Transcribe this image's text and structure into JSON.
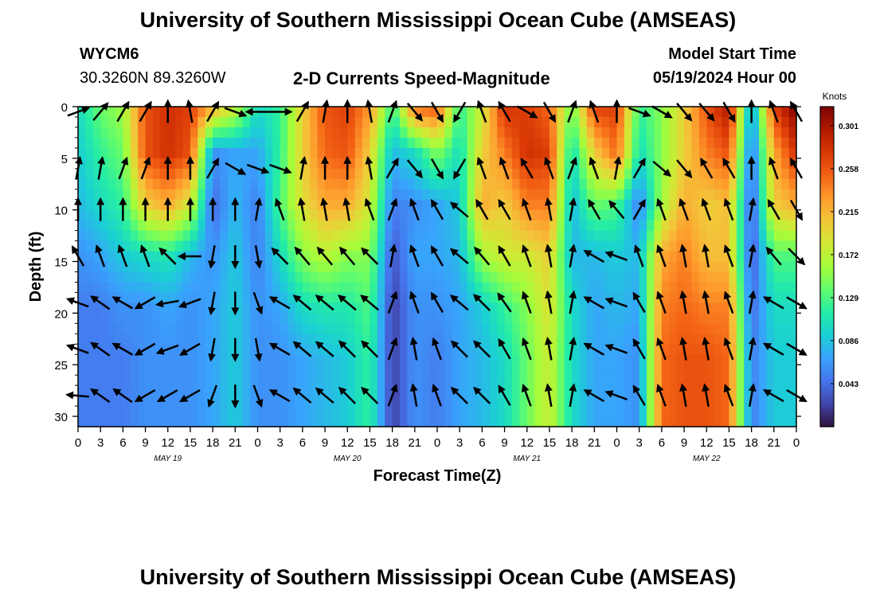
{
  "header": {
    "title": "University of Southern Mississippi Ocean Cube (AMSEAS)",
    "station_id": "WYCM6",
    "station_coords": "30.3260N  89.3260W",
    "plot_title": "2-D Currents Speed-Magnitude",
    "model_start_label": "Model Start Time",
    "model_start_value": "05/19/2024 Hour 00"
  },
  "footer": {
    "title": "University of Southern Mississippi Ocean Cube (AMSEAS)"
  },
  "colors": {
    "scale": [
      "#30123b",
      "#4145ab",
      "#4675ed",
      "#39a2fc",
      "#1bcfd4",
      "#24eca6",
      "#61fc6c",
      "#a4fc3b",
      "#d1e834",
      "#f3c63a",
      "#fe9b2d",
      "#f36315",
      "#d93806",
      "#b11901",
      "#7a0403"
    ],
    "arrow": "#000000"
  },
  "chart_data": {
    "type": "heatmap",
    "title": "2-D Currents Speed-Magnitude",
    "xlabel": "Forecast Time(Z)",
    "ylabel": "Depth (ft)",
    "x_range": [
      0,
      96
    ],
    "ylim": [
      0,
      31
    ],
    "x_ticks": [
      {
        "t": 0,
        "label": "0"
      },
      {
        "t": 3,
        "label": "3"
      },
      {
        "t": 6,
        "label": "6"
      },
      {
        "t": 9,
        "label": "9"
      },
      {
        "t": 12,
        "label": "12"
      },
      {
        "t": 15,
        "label": "15"
      },
      {
        "t": 18,
        "label": "18"
      },
      {
        "t": 21,
        "label": "21"
      },
      {
        "t": 24,
        "label": "0"
      },
      {
        "t": 27,
        "label": "3"
      },
      {
        "t": 30,
        "label": "6"
      },
      {
        "t": 33,
        "label": "9"
      },
      {
        "t": 36,
        "label": "12"
      },
      {
        "t": 39,
        "label": "15"
      },
      {
        "t": 42,
        "label": "18"
      },
      {
        "t": 45,
        "label": "21"
      },
      {
        "t": 48,
        "label": "0"
      },
      {
        "t": 51,
        "label": "3"
      },
      {
        "t": 54,
        "label": "6"
      },
      {
        "t": 57,
        "label": "9"
      },
      {
        "t": 60,
        "label": "12"
      },
      {
        "t": 63,
        "label": "15"
      },
      {
        "t": 66,
        "label": "18"
      },
      {
        "t": 69,
        "label": "21"
      },
      {
        "t": 72,
        "label": "0"
      },
      {
        "t": 75,
        "label": "3"
      },
      {
        "t": 78,
        "label": "6"
      },
      {
        "t": 81,
        "label": "9"
      },
      {
        "t": 84,
        "label": "12"
      },
      {
        "t": 87,
        "label": "15"
      },
      {
        "t": 90,
        "label": "18"
      },
      {
        "t": 93,
        "label": "21"
      },
      {
        "t": 96,
        "label": "0"
      }
    ],
    "date_labels": [
      {
        "t": 12,
        "label": "MAY 19"
      },
      {
        "t": 36,
        "label": "MAY 20"
      },
      {
        "t": 60,
        "label": "MAY 21"
      },
      {
        "t": 84,
        "label": "MAY 22"
      }
    ],
    "y_ticks": [
      0,
      5,
      10,
      15,
      20,
      25,
      30
    ],
    "colorbar": {
      "unit": "Knots",
      "min": 0.0,
      "max": 0.32,
      "ticks": [
        "0.301",
        "0.258",
        "0.215",
        "0.172",
        "0.129",
        "0.086",
        "0.043"
      ],
      "tick_values": [
        0.301,
        0.258,
        0.215,
        0.172,
        0.129,
        0.086,
        0.043
      ]
    },
    "depth_rows": [
      0,
      4.5,
      9.5,
      14.5,
      19.5,
      24.5,
      30
    ],
    "speed_columns": [
      {
        "t": 0,
        "speeds": [
          0.1,
          0.09,
          0.08,
          0.06,
          0.05,
          0.05,
          0.05
        ]
      },
      {
        "t": 3,
        "speeds": [
          0.14,
          0.12,
          0.1,
          0.07,
          0.05,
          0.05,
          0.05
        ]
      },
      {
        "t": 6,
        "speeds": [
          0.16,
          0.14,
          0.12,
          0.09,
          0.06,
          0.05,
          0.05
        ]
      },
      {
        "t": 9,
        "speeds": [
          0.26,
          0.26,
          0.2,
          0.1,
          0.06,
          0.06,
          0.06
        ]
      },
      {
        "t": 12,
        "speeds": [
          0.28,
          0.28,
          0.22,
          0.11,
          0.07,
          0.06,
          0.06
        ]
      },
      {
        "t": 15,
        "speeds": [
          0.27,
          0.26,
          0.18,
          0.08,
          0.06,
          0.06,
          0.06
        ]
      },
      {
        "t": 18,
        "speeds": [
          0.22,
          0.06,
          0.04,
          0.06,
          0.07,
          0.07,
          0.07
        ]
      },
      {
        "t": 21,
        "speeds": [
          0.18,
          0.07,
          0.08,
          0.09,
          0.09,
          0.09,
          0.09
        ]
      },
      {
        "t": 24,
        "speeds": [
          0.1,
          0.07,
          0.05,
          0.05,
          0.06,
          0.06,
          0.06
        ]
      },
      {
        "t": 27,
        "speeds": [
          0.12,
          0.12,
          0.13,
          0.1,
          0.07,
          0.06,
          0.06
        ]
      },
      {
        "t": 30,
        "speeds": [
          0.2,
          0.2,
          0.19,
          0.15,
          0.1,
          0.07,
          0.07
        ]
      },
      {
        "t": 33,
        "speeds": [
          0.26,
          0.25,
          0.22,
          0.17,
          0.11,
          0.08,
          0.08
        ]
      },
      {
        "t": 36,
        "speeds": [
          0.27,
          0.26,
          0.22,
          0.15,
          0.11,
          0.09,
          0.09
        ]
      },
      {
        "t": 39,
        "speeds": [
          0.23,
          0.2,
          0.18,
          0.15,
          0.13,
          0.12,
          0.12
        ]
      },
      {
        "t": 42,
        "speeds": [
          0.12,
          0.08,
          0.05,
          0.03,
          0.02,
          0.02,
          0.02
        ]
      },
      {
        "t": 45,
        "speeds": [
          0.25,
          0.1,
          0.06,
          0.07,
          0.06,
          0.06,
          0.06
        ]
      },
      {
        "t": 48,
        "speeds": [
          0.26,
          0.15,
          0.07,
          0.07,
          0.06,
          0.05,
          0.05
        ]
      },
      {
        "t": 51,
        "speeds": [
          0.12,
          0.1,
          0.09,
          0.08,
          0.07,
          0.07,
          0.07
        ]
      },
      {
        "t": 54,
        "speeds": [
          0.18,
          0.2,
          0.22,
          0.16,
          0.09,
          0.08,
          0.08
        ]
      },
      {
        "t": 57,
        "speeds": [
          0.28,
          0.24,
          0.2,
          0.18,
          0.12,
          0.1,
          0.1
        ]
      },
      {
        "t": 60,
        "speeds": [
          0.27,
          0.28,
          0.24,
          0.18,
          0.15,
          0.14,
          0.14
        ]
      },
      {
        "t": 63,
        "speeds": [
          0.25,
          0.27,
          0.24,
          0.2,
          0.19,
          0.18,
          0.18
        ]
      },
      {
        "t": 66,
        "speeds": [
          0.14,
          0.1,
          0.08,
          0.08,
          0.1,
          0.1,
          0.1
        ]
      },
      {
        "t": 69,
        "speeds": [
          0.27,
          0.2,
          0.14,
          0.08,
          0.07,
          0.07,
          0.07
        ]
      },
      {
        "t": 72,
        "speeds": [
          0.27,
          0.25,
          0.13,
          0.09,
          0.08,
          0.07,
          0.07
        ]
      },
      {
        "t": 75,
        "speeds": [
          0.12,
          0.1,
          0.05,
          0.08,
          0.07,
          0.06,
          0.06
        ]
      },
      {
        "t": 78,
        "speeds": [
          0.15,
          0.15,
          0.16,
          0.22,
          0.24,
          0.25,
          0.25
        ]
      },
      {
        "t": 81,
        "speeds": [
          0.2,
          0.2,
          0.22,
          0.24,
          0.25,
          0.26,
          0.26
        ]
      },
      {
        "t": 84,
        "speeds": [
          0.26,
          0.24,
          0.2,
          0.21,
          0.24,
          0.26,
          0.26
        ]
      },
      {
        "t": 87,
        "speeds": [
          0.3,
          0.26,
          0.21,
          0.21,
          0.24,
          0.25,
          0.25
        ]
      },
      {
        "t": 90,
        "speeds": [
          0.06,
          0.04,
          0.03,
          0.03,
          0.04,
          0.05,
          0.05
        ]
      },
      {
        "t": 93,
        "speeds": [
          0.27,
          0.22,
          0.2,
          0.13,
          0.1,
          0.09,
          0.09
        ]
      },
      {
        "t": 96,
        "speeds": [
          0.32,
          0.28,
          0.22,
          0.13,
          0.1,
          0.09,
          0.09
        ]
      }
    ],
    "vector_rows": [
      0.5,
      6,
      10,
      14.5,
      19,
      23.5,
      28
    ],
    "vector_columns": [
      {
        "t": 0,
        "dirs": [
          110,
          170,
          180,
          210,
          250,
          250,
          265
        ]
      },
      {
        "t": 3,
        "dirs": [
          140,
          170,
          180,
          200,
          235,
          235,
          235
        ]
      },
      {
        "t": 6,
        "dirs": [
          150,
          160,
          180,
          200,
          240,
          240,
          235
        ]
      },
      {
        "t": 9,
        "dirs": [
          150,
          160,
          180,
          200,
          300,
          300,
          300
        ]
      },
      {
        "t": 12,
        "dirs": [
          180,
          180,
          180,
          225,
          280,
          290,
          300
        ]
      },
      {
        "t": 15,
        "dirs": [
          190,
          180,
          180,
          270,
          290,
          300,
          300
        ]
      },
      {
        "t": 18,
        "dirs": [
          150,
          150,
          180,
          350,
          350,
          350,
          340
        ]
      },
      {
        "t": 21,
        "dirs": [
          70,
          60,
          180,
          360,
          360,
          360,
          360
        ]
      },
      {
        "t": 24,
        "dirs": [
          270,
          70,
          170,
          10,
          20,
          10,
          20
        ]
      },
      {
        "t": 27,
        "dirs": [
          90,
          70,
          200,
          225,
          240,
          240,
          240
        ]
      },
      {
        "t": 30,
        "dirs": [
          150,
          170,
          190,
          220,
          230,
          230,
          230
        ]
      },
      {
        "t": 33,
        "dirs": [
          170,
          180,
          190,
          220,
          230,
          230,
          230
        ]
      },
      {
        "t": 36,
        "dirs": [
          180,
          180,
          190,
          220,
          230,
          225,
          225
        ]
      },
      {
        "t": 39,
        "dirs": [
          190,
          190,
          200,
          225,
          230,
          225,
          225
        ]
      },
      {
        "t": 42,
        "dirs": [
          160,
          150,
          160,
          170,
          160,
          160,
          160
        ]
      },
      {
        "t": 45,
        "dirs": [
          40,
          40,
          200,
          200,
          200,
          190,
          190
        ]
      },
      {
        "t": 48,
        "dirs": [
          30,
          30,
          210,
          210,
          210,
          200,
          200
        ]
      },
      {
        "t": 51,
        "dirs": [
          330,
          330,
          230,
          230,
          230,
          225,
          225
        ]
      },
      {
        "t": 54,
        "dirs": [
          200,
          200,
          210,
          220,
          225,
          225,
          225
        ]
      },
      {
        "t": 57,
        "dirs": [
          210,
          200,
          210,
          210,
          215,
          210,
          210
        ]
      },
      {
        "t": 60,
        "dirs": [
          60,
          210,
          200,
          200,
          200,
          200,
          200
        ]
      },
      {
        "t": 63,
        "dirs": [
          30,
          200,
          190,
          190,
          190,
          190,
          190
        ]
      },
      {
        "t": 66,
        "dirs": [
          160,
          160,
          170,
          170,
          170,
          170,
          170
        ]
      },
      {
        "t": 69,
        "dirs": [
          200,
          200,
          210,
          240,
          240,
          240,
          240
        ]
      },
      {
        "t": 72,
        "dirs": [
          180,
          170,
          220,
          250,
          250,
          250,
          250
        ]
      },
      {
        "t": 75,
        "dirs": [
          70,
          150,
          150,
          200,
          210,
          210,
          210
        ]
      },
      {
        "t": 78,
        "dirs": [
          60,
          50,
          200,
          200,
          200,
          200,
          200
        ]
      },
      {
        "t": 81,
        "dirs": [
          40,
          40,
          200,
          190,
          190,
          190,
          190
        ]
      },
      {
        "t": 84,
        "dirs": [
          40,
          210,
          200,
          190,
          190,
          190,
          190
        ]
      },
      {
        "t": 87,
        "dirs": [
          30,
          210,
          200,
          200,
          200,
          200,
          200
        ]
      },
      {
        "t": 90,
        "dirs": [
          180,
          180,
          170,
          170,
          170,
          170,
          170
        ]
      },
      {
        "t": 93,
        "dirs": [
          200,
          200,
          210,
          220,
          240,
          240,
          240
        ]
      },
      {
        "t": 96,
        "dirs": [
          210,
          210,
          30,
          45,
          60,
          60,
          60
        ]
      }
    ]
  }
}
